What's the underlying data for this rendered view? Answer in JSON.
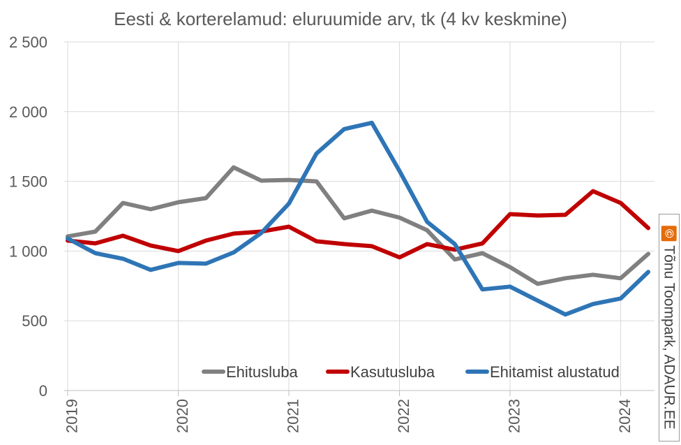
{
  "chart_data": {
    "type": "line",
    "title": "Eesti & korterelamud: eluruumide arv, tk (4 kv keskmine)",
    "xlabel": "",
    "ylabel": "",
    "ylim": [
      0,
      2500
    ],
    "y_ticks": [
      {
        "value": 0,
        "label": "0"
      },
      {
        "value": 500,
        "label": "500"
      },
      {
        "value": 1000,
        "label": "1 000"
      },
      {
        "value": 1500,
        "label": "1 500"
      },
      {
        "value": 2000,
        "label": "2 000"
      },
      {
        "value": 2500,
        "label": "2 500"
      }
    ],
    "x_ticks": [
      "2019",
      "2020",
      "2021",
      "2022",
      "2023",
      "2024"
    ],
    "x_start": 2019.0,
    "x_step": 0.25,
    "x_range": [
      2018.9,
      2024.6
    ],
    "grid": "vertical and horizontal",
    "legend_position": "bottom-right",
    "series": [
      {
        "name": "Ehitusluba",
        "color": "#808080",
        "values": [
          1105,
          1140,
          1345,
          1300,
          1350,
          1380,
          1600,
          1505,
          1510,
          1500,
          1235,
          1290,
          1240,
          1150,
          940,
          985,
          885,
          765,
          805,
          830,
          805,
          980
        ]
      },
      {
        "name": "Kasutusluba",
        "color": "#c00000",
        "values": [
          1075,
          1055,
          1110,
          1040,
          1000,
          1075,
          1125,
          1140,
          1175,
          1070,
          1050,
          1035,
          955,
          1050,
          1010,
          1055,
          1265,
          1255,
          1260,
          1430,
          1345,
          1165
        ]
      },
      {
        "name": "Ehitamist alustatud",
        "color": "#2e75b6",
        "values": [
          1090,
          985,
          945,
          865,
          915,
          910,
          990,
          1130,
          1340,
          1700,
          1875,
          1920,
          1575,
          1210,
          1050,
          725,
          745,
          645,
          545,
          620,
          660,
          850
        ]
      }
    ]
  },
  "credit": {
    "symbol": "©",
    "text": "Tõnu Toompark, ADAUR.EE"
  }
}
